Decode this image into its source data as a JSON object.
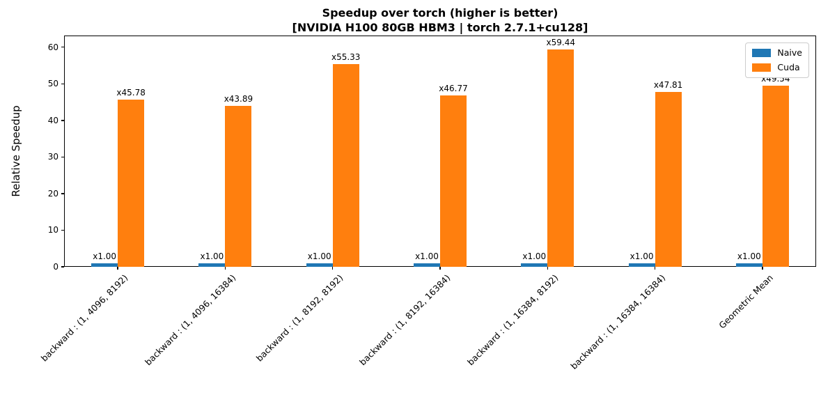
{
  "title": {
    "line1": "Speedup over torch (higher is better)",
    "line2": "[NVIDIA H100 80GB HBM3 | torch 2.7.1+cu128]"
  },
  "chart_data": {
    "type": "bar",
    "title": "Speedup over torch (higher is better)\n[NVIDIA H100 80GB HBM3 | torch 2.7.1+cu128]",
    "xlabel": "",
    "ylabel": "Relative Speedup",
    "categories": [
      "backward : (1, 4096, 8192)",
      "backward : (1, 4096, 16384)",
      "backward : (1, 8192, 8192)",
      "backward : (1, 8192, 16384)",
      "backward : (1, 16384, 8192)",
      "backward : (1, 16384, 16384)",
      "Geometric Mean"
    ],
    "series": [
      {
        "name": "Naive",
        "color": "#1f77b4",
        "values": [
          1.0,
          1.0,
          1.0,
          1.0,
          1.0,
          1.0,
          1.0
        ],
        "bar_labels": [
          "x1.00",
          "x1.00",
          "x1.00",
          "x1.00",
          "x1.00",
          "x1.00",
          "x1.00"
        ]
      },
      {
        "name": "Cuda",
        "color": "#ff7f0e",
        "values": [
          45.78,
          43.89,
          55.33,
          46.77,
          59.44,
          47.81,
          49.54
        ],
        "bar_labels": [
          "x45.78",
          "x43.89",
          "x55.33",
          "x46.77",
          "x59.44",
          "x47.81",
          "x49.54"
        ]
      }
    ],
    "yticks": [
      0,
      10,
      20,
      30,
      40,
      50,
      60
    ],
    "ylim": [
      0,
      63.2
    ],
    "grid": false,
    "legend_position": "upper right",
    "xtick_rotation_deg": 45,
    "colors": {
      "naive": "#1f77b4",
      "cuda": "#ff7f0e",
      "frame": "#000000",
      "background": "#ffffff"
    }
  }
}
